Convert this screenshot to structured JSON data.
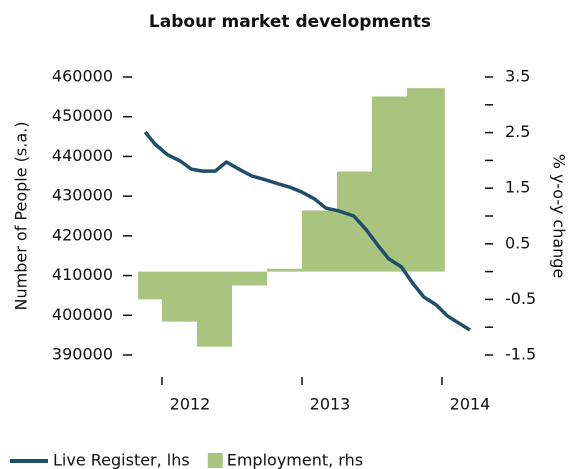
{
  "chart_data": {
    "type": "combo",
    "title": "Labour market developments",
    "ylabel": "Number of People (s.a.)",
    "y2label": "% y-o-y change",
    "xlim": [
      2011.83,
      2014.2
    ],
    "xticks": [
      2012,
      2013,
      2014
    ],
    "ylim": [
      390000,
      460000
    ],
    "yticks": [
      390000,
      400000,
      410000,
      420000,
      430000,
      440000,
      450000,
      460000
    ],
    "y2lim": [
      -1.5,
      3.5
    ],
    "y2ticks": [
      -1.5,
      -0.5,
      0.5,
      1.5,
      2.5,
      3.5
    ],
    "y2minor_ticks": [
      -1,
      0,
      1,
      2,
      3
    ],
    "series": [
      {
        "name": "Live Register, lhs",
        "type": "line",
        "color": "#1f4e6b",
        "x": [
          2011.88,
          2011.95,
          2012.04,
          2012.13,
          2012.21,
          2012.29,
          2012.38,
          2012.46,
          2012.56,
          2012.64,
          2012.74,
          2012.83,
          2012.91,
          2013.0,
          2013.09,
          2013.17,
          2013.26,
          2013.37,
          2013.46,
          2013.54,
          2013.62,
          2013.71,
          2013.79,
          2013.87,
          2013.96,
          2014.04,
          2014.13,
          2014.2
        ],
        "values": [
          446150,
          443100,
          440400,
          438850,
          436800,
          436300,
          436300,
          438600,
          436600,
          435100,
          434100,
          433100,
          432300,
          431000,
          429300,
          427000,
          426300,
          425000,
          421500,
          417700,
          414200,
          412200,
          408100,
          404600,
          402600,
          399800,
          397800,
          396300
        ]
      },
      {
        "name": "Employment, rhs",
        "type": "bar",
        "color": "#a9c47f",
        "axis": "y2",
        "bins": [
          2011.83,
          2012,
          2012.25,
          2012.5,
          2012.75,
          2013,
          2013.25,
          2013.5,
          2013.75,
          2014.02
        ],
        "values": [
          -0.5,
          -0.9,
          -1.35,
          -0.25,
          0.05,
          1.1,
          1.8,
          3.15,
          3.3
        ]
      }
    ],
    "legend": "bottom-left"
  }
}
